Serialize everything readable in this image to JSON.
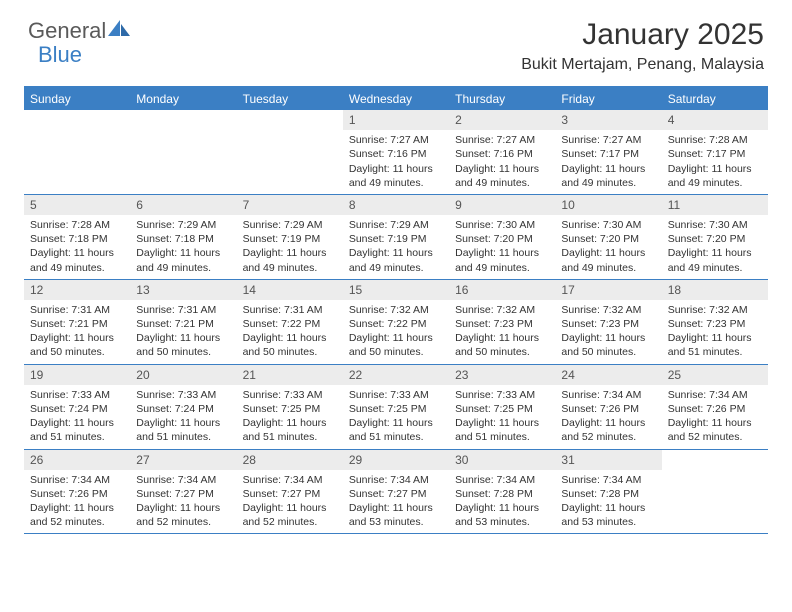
{
  "logo": {
    "text_gray": "General",
    "text_blue": "Blue"
  },
  "header": {
    "title": "January 2025",
    "subtitle": "Bukit Mertajam, Penang, Malaysia"
  },
  "colors": {
    "brand_blue": "#3b7fc4",
    "header_gray": "#ececec",
    "text": "#333333",
    "background": "#ffffff"
  },
  "weekdays": [
    "Sunday",
    "Monday",
    "Tuesday",
    "Wednesday",
    "Thursday",
    "Friday",
    "Saturday"
  ],
  "calendar": {
    "type": "calendar-grid",
    "start_weekday_index": 3,
    "days": [
      {
        "n": 1,
        "sunrise": "7:27 AM",
        "sunset": "7:16 PM",
        "daylight": "11 hours and 49 minutes."
      },
      {
        "n": 2,
        "sunrise": "7:27 AM",
        "sunset": "7:16 PM",
        "daylight": "11 hours and 49 minutes."
      },
      {
        "n": 3,
        "sunrise": "7:27 AM",
        "sunset": "7:17 PM",
        "daylight": "11 hours and 49 minutes."
      },
      {
        "n": 4,
        "sunrise": "7:28 AM",
        "sunset": "7:17 PM",
        "daylight": "11 hours and 49 minutes."
      },
      {
        "n": 5,
        "sunrise": "7:28 AM",
        "sunset": "7:18 PM",
        "daylight": "11 hours and 49 minutes."
      },
      {
        "n": 6,
        "sunrise": "7:29 AM",
        "sunset": "7:18 PM",
        "daylight": "11 hours and 49 minutes."
      },
      {
        "n": 7,
        "sunrise": "7:29 AM",
        "sunset": "7:19 PM",
        "daylight": "11 hours and 49 minutes."
      },
      {
        "n": 8,
        "sunrise": "7:29 AM",
        "sunset": "7:19 PM",
        "daylight": "11 hours and 49 minutes."
      },
      {
        "n": 9,
        "sunrise": "7:30 AM",
        "sunset": "7:20 PM",
        "daylight": "11 hours and 49 minutes."
      },
      {
        "n": 10,
        "sunrise": "7:30 AM",
        "sunset": "7:20 PM",
        "daylight": "11 hours and 49 minutes."
      },
      {
        "n": 11,
        "sunrise": "7:30 AM",
        "sunset": "7:20 PM",
        "daylight": "11 hours and 49 minutes."
      },
      {
        "n": 12,
        "sunrise": "7:31 AM",
        "sunset": "7:21 PM",
        "daylight": "11 hours and 50 minutes."
      },
      {
        "n": 13,
        "sunrise": "7:31 AM",
        "sunset": "7:21 PM",
        "daylight": "11 hours and 50 minutes."
      },
      {
        "n": 14,
        "sunrise": "7:31 AM",
        "sunset": "7:22 PM",
        "daylight": "11 hours and 50 minutes."
      },
      {
        "n": 15,
        "sunrise": "7:32 AM",
        "sunset": "7:22 PM",
        "daylight": "11 hours and 50 minutes."
      },
      {
        "n": 16,
        "sunrise": "7:32 AM",
        "sunset": "7:23 PM",
        "daylight": "11 hours and 50 minutes."
      },
      {
        "n": 17,
        "sunrise": "7:32 AM",
        "sunset": "7:23 PM",
        "daylight": "11 hours and 50 minutes."
      },
      {
        "n": 18,
        "sunrise": "7:32 AM",
        "sunset": "7:23 PM",
        "daylight": "11 hours and 51 minutes."
      },
      {
        "n": 19,
        "sunrise": "7:33 AM",
        "sunset": "7:24 PM",
        "daylight": "11 hours and 51 minutes."
      },
      {
        "n": 20,
        "sunrise": "7:33 AM",
        "sunset": "7:24 PM",
        "daylight": "11 hours and 51 minutes."
      },
      {
        "n": 21,
        "sunrise": "7:33 AM",
        "sunset": "7:25 PM",
        "daylight": "11 hours and 51 minutes."
      },
      {
        "n": 22,
        "sunrise": "7:33 AM",
        "sunset": "7:25 PM",
        "daylight": "11 hours and 51 minutes."
      },
      {
        "n": 23,
        "sunrise": "7:33 AM",
        "sunset": "7:25 PM",
        "daylight": "11 hours and 51 minutes."
      },
      {
        "n": 24,
        "sunrise": "7:34 AM",
        "sunset": "7:26 PM",
        "daylight": "11 hours and 52 minutes."
      },
      {
        "n": 25,
        "sunrise": "7:34 AM",
        "sunset": "7:26 PM",
        "daylight": "11 hours and 52 minutes."
      },
      {
        "n": 26,
        "sunrise": "7:34 AM",
        "sunset": "7:26 PM",
        "daylight": "11 hours and 52 minutes."
      },
      {
        "n": 27,
        "sunrise": "7:34 AM",
        "sunset": "7:27 PM",
        "daylight": "11 hours and 52 minutes."
      },
      {
        "n": 28,
        "sunrise": "7:34 AM",
        "sunset": "7:27 PM",
        "daylight": "11 hours and 52 minutes."
      },
      {
        "n": 29,
        "sunrise": "7:34 AM",
        "sunset": "7:27 PM",
        "daylight": "11 hours and 53 minutes."
      },
      {
        "n": 30,
        "sunrise": "7:34 AM",
        "sunset": "7:28 PM",
        "daylight": "11 hours and 53 minutes."
      },
      {
        "n": 31,
        "sunrise": "7:34 AM",
        "sunset": "7:28 PM",
        "daylight": "11 hours and 53 minutes."
      }
    ]
  },
  "labels": {
    "sunrise_prefix": "Sunrise: ",
    "sunset_prefix": "Sunset: ",
    "daylight_prefix": "Daylight: "
  }
}
